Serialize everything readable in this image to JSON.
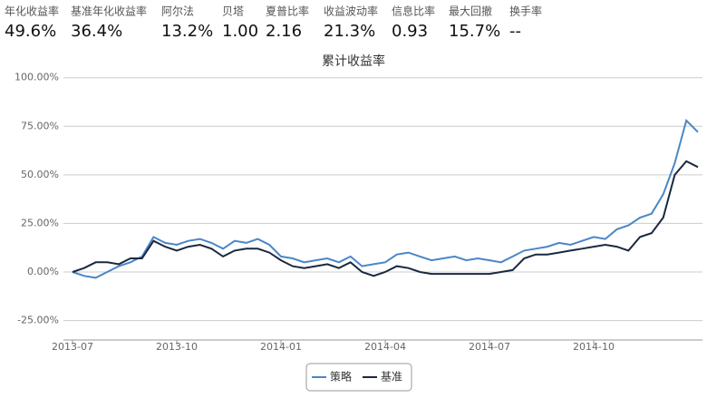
{
  "metrics": [
    {
      "label": "年化收益率",
      "value": "49.6%"
    },
    {
      "label": "基准年化收益率",
      "value": "36.4%"
    },
    {
      "label": "阿尔法",
      "value": "13.2%"
    },
    {
      "label": "贝塔",
      "value": "1.00"
    },
    {
      "label": "夏普比率",
      "value": "2.16"
    },
    {
      "label": "收益波动率",
      "value": "21.3%"
    },
    {
      "label": "信息比率",
      "value": "0.93"
    },
    {
      "label": "最大回撤",
      "value": "15.7%"
    },
    {
      "label": "换手率",
      "value": "--"
    }
  ],
  "chart_data": {
    "type": "line",
    "title": "累计收益率",
    "x": [
      "2013-07",
      "2013-07",
      "2013-07",
      "2013-08",
      "2013-08",
      "2013-08",
      "2013-09",
      "2013-09",
      "2013-09",
      "2013-10",
      "2013-10",
      "2013-10",
      "2013-11",
      "2013-11",
      "2013-11",
      "2013-12",
      "2013-12",
      "2013-12",
      "2014-01",
      "2014-01",
      "2014-01",
      "2014-02",
      "2014-02",
      "2014-02",
      "2014-03",
      "2014-03",
      "2014-03",
      "2014-04",
      "2014-04",
      "2014-04",
      "2014-05",
      "2014-05",
      "2014-05",
      "2014-06",
      "2014-06",
      "2014-06",
      "2014-07",
      "2014-07",
      "2014-07",
      "2014-08",
      "2014-08",
      "2014-08",
      "2014-09",
      "2014-09",
      "2014-09",
      "2014-10",
      "2014-10",
      "2014-10",
      "2014-11",
      "2014-11",
      "2014-11",
      "2014-12",
      "2014-12",
      "2014-12",
      "2014-12"
    ],
    "xticks": [
      "2013-07",
      "2013-10",
      "2014-01",
      "2014-04",
      "2014-07",
      "2014-10"
    ],
    "series": [
      {
        "name": "策略",
        "color": "#4a86c8",
        "values": [
          0,
          -2,
          -3,
          0,
          3,
          5,
          8,
          18,
          15,
          14,
          16,
          17,
          15,
          12,
          16,
          15,
          17,
          14,
          8,
          7,
          5,
          6,
          7,
          5,
          8,
          3,
          4,
          5,
          9,
          10,
          8,
          6,
          7,
          8,
          6,
          7,
          6,
          5,
          8,
          11,
          12,
          13,
          15,
          14,
          16,
          18,
          17,
          22,
          24,
          28,
          30,
          40,
          56,
          78,
          72
        ]
      },
      {
        "name": "基准",
        "color": "#1a2940",
        "values": [
          0,
          2,
          5,
          5,
          4,
          7,
          7,
          16,
          13,
          11,
          13,
          14,
          12,
          8,
          11,
          12,
          12,
          10,
          6,
          3,
          2,
          3,
          4,
          2,
          5,
          0,
          -2,
          0,
          3,
          2,
          0,
          -1,
          -1,
          -1,
          -1,
          -1,
          -1,
          0,
          1,
          7,
          9,
          9,
          10,
          11,
          12,
          13,
          14,
          13,
          11,
          18,
          20,
          28,
          50,
          57,
          54
        ]
      }
    ],
    "ylim": [
      -35,
      105
    ],
    "yticks": [
      {
        "value": -25,
        "label": "-25.00%"
      },
      {
        "value": 0,
        "label": "0.00%"
      },
      {
        "value": 25,
        "label": "25.00%"
      },
      {
        "value": 50,
        "label": "50.00%"
      },
      {
        "value": 75,
        "label": "75.00%"
      },
      {
        "value": 100,
        "label": "100.00%"
      }
    ],
    "grid": true,
    "legend": "bottom"
  }
}
